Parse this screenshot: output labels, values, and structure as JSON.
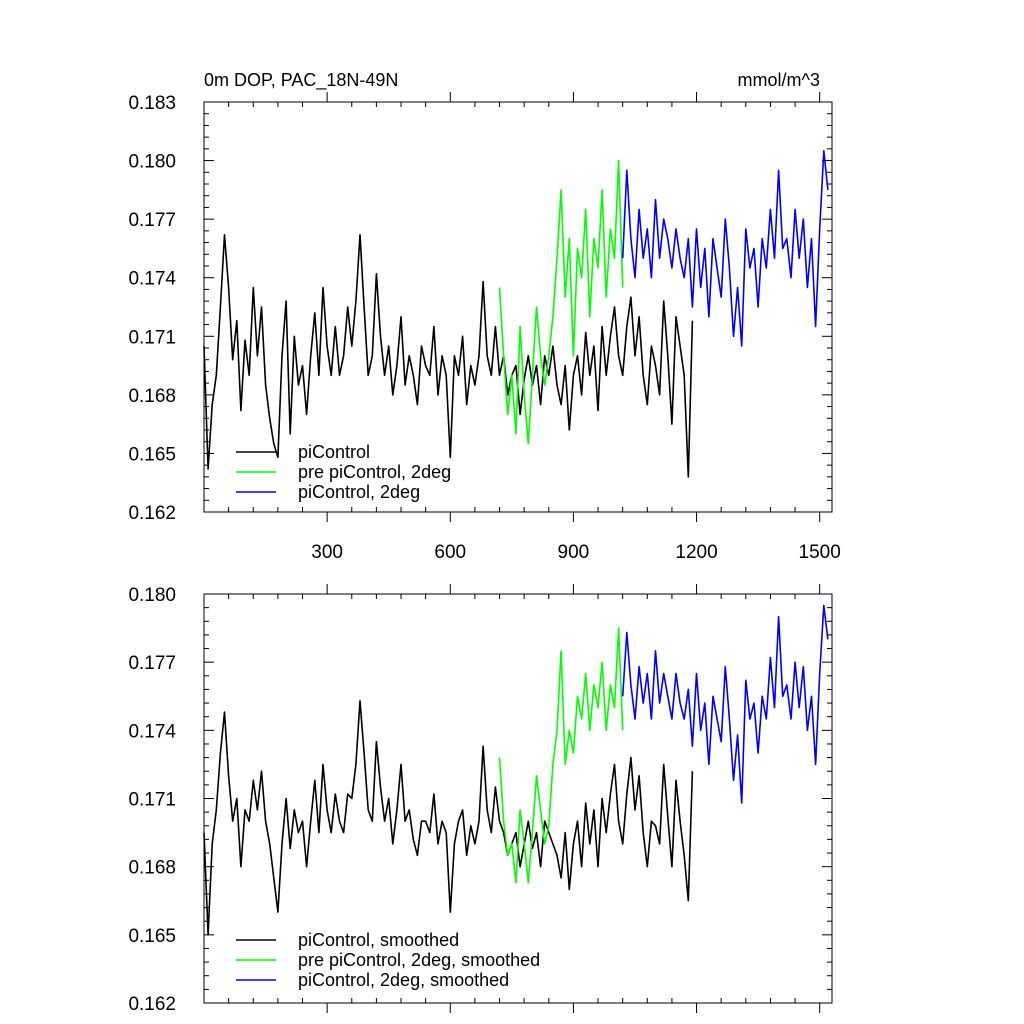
{
  "chart_data": [
    {
      "type": "line",
      "title": "0m DOP, PAC_18N-49N",
      "units": "mmol/m^3",
      "xlim": [
        0,
        1530
      ],
      "ylim": [
        0.162,
        0.183
      ],
      "xticks": [
        300,
        600,
        900,
        1200,
        1500
      ],
      "xtick_labels": [
        "300",
        "600",
        "900",
        "1200",
        "1500"
      ],
      "yticks": [
        0.162,
        0.165,
        0.168,
        0.171,
        0.174,
        0.177,
        0.18,
        0.183
      ],
      "ytick_labels": [
        "0.162",
        "0.165",
        "0.168",
        "0.171",
        "0.174",
        "0.177",
        "0.180",
        "0.183"
      ],
      "legend_position": "bottom-left",
      "series": [
        {
          "name": "piControl",
          "color": "#000000",
          "x": [
            0,
            10,
            20,
            30,
            40,
            50,
            60,
            70,
            80,
            90,
            100,
            110,
            120,
            130,
            140,
            150,
            160,
            170,
            180,
            190,
            200,
            210,
            220,
            230,
            240,
            250,
            260,
            270,
            280,
            290,
            300,
            310,
            320,
            330,
            340,
            350,
            360,
            370,
            380,
            390,
            400,
            410,
            420,
            430,
            440,
            450,
            460,
            470,
            480,
            490,
            500,
            510,
            520,
            530,
            540,
            550,
            560,
            570,
            580,
            590,
            600,
            610,
            620,
            630,
            640,
            650,
            660,
            670,
            680,
            690,
            700,
            710,
            720,
            730,
            740,
            750,
            760,
            770,
            780,
            790,
            800,
            810,
            820,
            830,
            840,
            850,
            860,
            870,
            880,
            890,
            900,
            910,
            920,
            930,
            940,
            950,
            960,
            970,
            980,
            990,
            1000,
            1010,
            1020,
            1030,
            1040,
            1050,
            1060,
            1070,
            1080,
            1090,
            1100,
            1110,
            1120,
            1130,
            1140,
            1150,
            1160,
            1170,
            1180,
            1190
          ],
          "values": [
            0.1705,
            0.1642,
            0.1675,
            0.169,
            0.1725,
            0.1762,
            0.1735,
            0.1698,
            0.1718,
            0.1672,
            0.1708,
            0.169,
            0.1735,
            0.17,
            0.1725,
            0.1685,
            0.1668,
            0.1655,
            0.1648,
            0.17,
            0.1728,
            0.166,
            0.171,
            0.1685,
            0.1695,
            0.167,
            0.17,
            0.1722,
            0.169,
            0.1735,
            0.1705,
            0.169,
            0.1715,
            0.169,
            0.17,
            0.1725,
            0.1705,
            0.1728,
            0.1762,
            0.1725,
            0.169,
            0.17,
            0.1742,
            0.171,
            0.169,
            0.1705,
            0.168,
            0.1695,
            0.172,
            0.1685,
            0.17,
            0.169,
            0.1675,
            0.1705,
            0.1695,
            0.169,
            0.1715,
            0.168,
            0.17,
            0.169,
            0.1648,
            0.17,
            0.169,
            0.171,
            0.1675,
            0.1695,
            0.1685,
            0.17,
            0.1738,
            0.17,
            0.169,
            0.1715,
            0.169,
            0.17,
            0.168,
            0.169,
            0.1695,
            0.167,
            0.1688,
            0.17,
            0.1685,
            0.1695,
            0.1675,
            0.17,
            0.169,
            0.1705,
            0.1685,
            0.1675,
            0.1695,
            0.1662,
            0.169,
            0.17,
            0.168,
            0.1712,
            0.169,
            0.1705,
            0.1672,
            0.1715,
            0.169,
            0.171,
            0.1725,
            0.17,
            0.169,
            0.1715,
            0.173,
            0.17,
            0.172,
            0.169,
            0.1675,
            0.1705,
            0.1695,
            0.168,
            0.1728,
            0.17,
            0.1665,
            0.172,
            0.1705,
            0.169,
            0.1638,
            0.1718
          ]
        },
        {
          "name": "pre piControl, 2deg",
          "color": "#00ff00",
          "x": [
            720,
            730,
            740,
            750,
            760,
            770,
            780,
            790,
            800,
            810,
            820,
            830,
            840,
            850,
            860,
            870,
            880,
            890,
            900,
            910,
            920,
            930,
            940,
            950,
            960,
            970,
            980,
            990,
            1000,
            1010,
            1020
          ],
          "values": [
            0.1735,
            0.17,
            0.167,
            0.169,
            0.166,
            0.1715,
            0.168,
            0.1655,
            0.169,
            0.1725,
            0.17,
            0.1685,
            0.17,
            0.172,
            0.175,
            0.1785,
            0.173,
            0.176,
            0.17,
            0.1755,
            0.174,
            0.1775,
            0.172,
            0.176,
            0.1745,
            0.1785,
            0.173,
            0.1765,
            0.175,
            0.18,
            0.1735
          ]
        },
        {
          "name": "piControl, 2deg",
          "color": "#0000ff",
          "x": [
            1020,
            1030,
            1040,
            1050,
            1060,
            1070,
            1080,
            1090,
            1100,
            1110,
            1120,
            1130,
            1140,
            1150,
            1160,
            1170,
            1180,
            1190,
            1200,
            1210,
            1220,
            1230,
            1240,
            1250,
            1260,
            1270,
            1280,
            1290,
            1300,
            1310,
            1320,
            1330,
            1340,
            1350,
            1360,
            1370,
            1380,
            1390,
            1400,
            1410,
            1420,
            1430,
            1440,
            1450,
            1460,
            1470,
            1480,
            1490,
            1500,
            1510,
            1520
          ],
          "values": [
            0.175,
            0.1795,
            0.176,
            0.174,
            0.1775,
            0.175,
            0.1765,
            0.174,
            0.178,
            0.175,
            0.177,
            0.176,
            0.1745,
            0.1765,
            0.175,
            0.174,
            0.176,
            0.1725,
            0.1765,
            0.1735,
            0.1755,
            0.172,
            0.176,
            0.1745,
            0.173,
            0.177,
            0.1745,
            0.171,
            0.1735,
            0.1705,
            0.1765,
            0.1745,
            0.1755,
            0.1725,
            0.176,
            0.1745,
            0.1775,
            0.175,
            0.1795,
            0.1755,
            0.176,
            0.174,
            0.1775,
            0.175,
            0.177,
            0.1735,
            0.176,
            0.1715,
            0.1765,
            0.1805,
            0.1785
          ]
        }
      ]
    },
    {
      "type": "line",
      "xlim": [
        0,
        1530
      ],
      "ylim": [
        0.162,
        0.18
      ],
      "yticks": [
        0.162,
        0.165,
        0.168,
        0.171,
        0.174,
        0.177,
        0.18
      ],
      "ytick_labels": [
        "0.162",
        "0.165",
        "0.168",
        "0.171",
        "0.174",
        "0.177",
        "0.180"
      ],
      "xtick_positions": [
        300,
        600,
        900,
        1200,
        1500
      ],
      "legend_position": "bottom-left",
      "series": [
        {
          "name": "piControl, smoothed",
          "color": "#000000",
          "x": [
            0,
            10,
            20,
            30,
            40,
            50,
            60,
            70,
            80,
            90,
            100,
            110,
            120,
            130,
            140,
            150,
            160,
            170,
            180,
            190,
            200,
            210,
            220,
            230,
            240,
            250,
            260,
            270,
            280,
            290,
            300,
            310,
            320,
            330,
            340,
            350,
            360,
            370,
            380,
            390,
            400,
            410,
            420,
            430,
            440,
            450,
            460,
            470,
            480,
            490,
            500,
            510,
            520,
            530,
            540,
            550,
            560,
            570,
            580,
            590,
            600,
            610,
            620,
            630,
            640,
            650,
            660,
            670,
            680,
            690,
            700,
            710,
            720,
            730,
            740,
            750,
            760,
            770,
            780,
            790,
            800,
            810,
            820,
            830,
            840,
            850,
            860,
            870,
            880,
            890,
            900,
            910,
            920,
            930,
            940,
            950,
            960,
            970,
            980,
            990,
            1000,
            1010,
            1020,
            1030,
            1040,
            1050,
            1060,
            1070,
            1080,
            1090,
            1100,
            1110,
            1120,
            1130,
            1140,
            1150,
            1160,
            1170,
            1180,
            1190
          ],
          "values": [
            0.1695,
            0.165,
            0.169,
            0.1705,
            0.173,
            0.1748,
            0.172,
            0.17,
            0.171,
            0.168,
            0.1705,
            0.17,
            0.1718,
            0.1705,
            0.1722,
            0.17,
            0.169,
            0.1675,
            0.166,
            0.169,
            0.171,
            0.1688,
            0.1705,
            0.1695,
            0.17,
            0.168,
            0.17,
            0.1718,
            0.1695,
            0.1725,
            0.1705,
            0.1695,
            0.1712,
            0.17,
            0.1695,
            0.1712,
            0.171,
            0.1725,
            0.1753,
            0.173,
            0.1705,
            0.17,
            0.1735,
            0.1715,
            0.17,
            0.171,
            0.169,
            0.1705,
            0.1725,
            0.17,
            0.1705,
            0.1692,
            0.1685,
            0.17,
            0.17,
            0.1695,
            0.1712,
            0.169,
            0.17,
            0.1695,
            0.166,
            0.169,
            0.17,
            0.1705,
            0.1685,
            0.1698,
            0.169,
            0.17,
            0.1733,
            0.1705,
            0.1695,
            0.1715,
            0.17,
            0.1695,
            0.1685,
            0.169,
            0.1695,
            0.168,
            0.169,
            0.17,
            0.1688,
            0.1695,
            0.168,
            0.17,
            0.1695,
            0.169,
            0.1685,
            0.1675,
            0.1695,
            0.167,
            0.169,
            0.17,
            0.168,
            0.1708,
            0.169,
            0.1705,
            0.168,
            0.171,
            0.1695,
            0.1712,
            0.1725,
            0.17,
            0.169,
            0.1712,
            0.1728,
            0.1705,
            0.172,
            0.1695,
            0.168,
            0.17,
            0.1698,
            0.169,
            0.1725,
            0.1702,
            0.168,
            0.1718,
            0.17,
            0.1685,
            0.1665,
            0.1722
          ]
        },
        {
          "name": "pre piControl, 2deg, smoothed",
          "color": "#00ff00",
          "x": [
            720,
            730,
            740,
            750,
            760,
            770,
            780,
            790,
            800,
            810,
            820,
            830,
            840,
            850,
            860,
            870,
            880,
            890,
            900,
            910,
            920,
            930,
            940,
            950,
            960,
            970,
            980,
            990,
            1000,
            1010,
            1020
          ],
          "values": [
            0.1728,
            0.17,
            0.1685,
            0.169,
            0.1673,
            0.1705,
            0.169,
            0.1673,
            0.1695,
            0.172,
            0.1705,
            0.169,
            0.1698,
            0.1725,
            0.174,
            0.1775,
            0.1725,
            0.174,
            0.173,
            0.1755,
            0.1745,
            0.1765,
            0.174,
            0.176,
            0.175,
            0.177,
            0.174,
            0.176,
            0.175,
            0.1785,
            0.174
          ]
        },
        {
          "name": "piControl, 2deg, smoothed",
          "color": "#0000ff",
          "x": [
            1020,
            1030,
            1040,
            1050,
            1060,
            1070,
            1080,
            1090,
            1100,
            1110,
            1120,
            1130,
            1140,
            1150,
            1160,
            1170,
            1180,
            1190,
            1200,
            1210,
            1220,
            1230,
            1240,
            1250,
            1260,
            1270,
            1280,
            1290,
            1300,
            1310,
            1320,
            1330,
            1340,
            1350,
            1360,
            1370,
            1380,
            1390,
            1400,
            1410,
            1420,
            1430,
            1440,
            1450,
            1460,
            1470,
            1480,
            1490,
            1500,
            1510,
            1520
          ],
          "values": [
            0.1755,
            0.1783,
            0.176,
            0.1745,
            0.1768,
            0.1752,
            0.1765,
            0.1745,
            0.1775,
            0.1752,
            0.1765,
            0.1755,
            0.1745,
            0.1765,
            0.1752,
            0.1745,
            0.1758,
            0.1733,
            0.1765,
            0.174,
            0.1752,
            0.1725,
            0.1755,
            0.1745,
            0.1735,
            0.1768,
            0.1745,
            0.1718,
            0.1738,
            0.1708,
            0.1762,
            0.1745,
            0.1752,
            0.173,
            0.1755,
            0.1745,
            0.1772,
            0.175,
            0.179,
            0.1755,
            0.176,
            0.1745,
            0.177,
            0.175,
            0.1768,
            0.174,
            0.1755,
            0.1725,
            0.1765,
            0.1795,
            0.178
          ]
        }
      ]
    }
  ]
}
